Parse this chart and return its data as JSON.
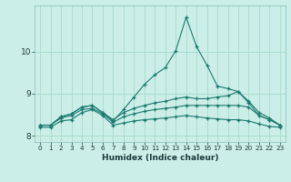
{
  "xlabel": "Humidex (Indice chaleur)",
  "background_color": "#cceee8",
  "grid_color": "#aaddcc",
  "line_color": "#1a7a6e",
  "xlim": [
    -0.5,
    23.5
  ],
  "ylim": [
    7.85,
    11.1
  ],
  "yticks": [
    8,
    9,
    10
  ],
  "xticks": [
    0,
    1,
    2,
    3,
    4,
    5,
    6,
    7,
    8,
    9,
    10,
    11,
    12,
    13,
    14,
    15,
    16,
    17,
    18,
    19,
    20,
    21,
    22,
    23
  ],
  "series": [
    {
      "x": [
        0,
        1,
        2,
        3,
        4,
        5,
        6,
        7,
        8,
        9,
        10,
        11,
        12,
        13,
        14,
        15,
        16,
        17,
        18,
        19,
        20,
        21,
        22,
        23
      ],
      "y": [
        8.25,
        8.25,
        8.45,
        8.52,
        8.68,
        8.72,
        8.55,
        8.35,
        8.62,
        8.92,
        9.22,
        9.45,
        9.62,
        10.02,
        10.82,
        10.12,
        9.68,
        9.18,
        9.12,
        9.05,
        8.78,
        8.48,
        8.38,
        8.25
      ]
    },
    {
      "x": [
        0,
        1,
        2,
        3,
        4,
        5,
        6,
        7,
        8,
        9,
        10,
        11,
        12,
        13,
        14,
        15,
        16,
        17,
        18,
        19,
        20,
        21,
        22,
        23
      ],
      "y": [
        8.25,
        8.25,
        8.45,
        8.52,
        8.68,
        8.72,
        8.55,
        8.38,
        8.55,
        8.65,
        8.72,
        8.78,
        8.82,
        8.88,
        8.92,
        8.88,
        8.88,
        8.92,
        8.95,
        9.05,
        8.82,
        8.55,
        8.42,
        8.25
      ]
    },
    {
      "x": [
        0,
        1,
        2,
        3,
        4,
        5,
        6,
        7,
        8,
        9,
        10,
        11,
        12,
        13,
        14,
        15,
        16,
        17,
        18,
        19,
        20,
        21,
        22,
        23
      ],
      "y": [
        8.25,
        8.25,
        8.42,
        8.48,
        8.62,
        8.65,
        8.52,
        8.32,
        8.45,
        8.52,
        8.58,
        8.62,
        8.65,
        8.68,
        8.72,
        8.72,
        8.72,
        8.72,
        8.72,
        8.72,
        8.68,
        8.48,
        8.38,
        8.25
      ]
    },
    {
      "x": [
        0,
        1,
        2,
        3,
        4,
        5,
        6,
        7,
        8,
        9,
        10,
        11,
        12,
        13,
        14,
        15,
        16,
        17,
        18,
        19,
        20,
        21,
        22,
        23
      ],
      "y": [
        8.2,
        8.2,
        8.35,
        8.38,
        8.55,
        8.62,
        8.48,
        8.25,
        8.3,
        8.35,
        8.38,
        8.4,
        8.42,
        8.45,
        8.48,
        8.45,
        8.42,
        8.4,
        8.38,
        8.38,
        8.35,
        8.28,
        8.22,
        8.2
      ]
    }
  ]
}
